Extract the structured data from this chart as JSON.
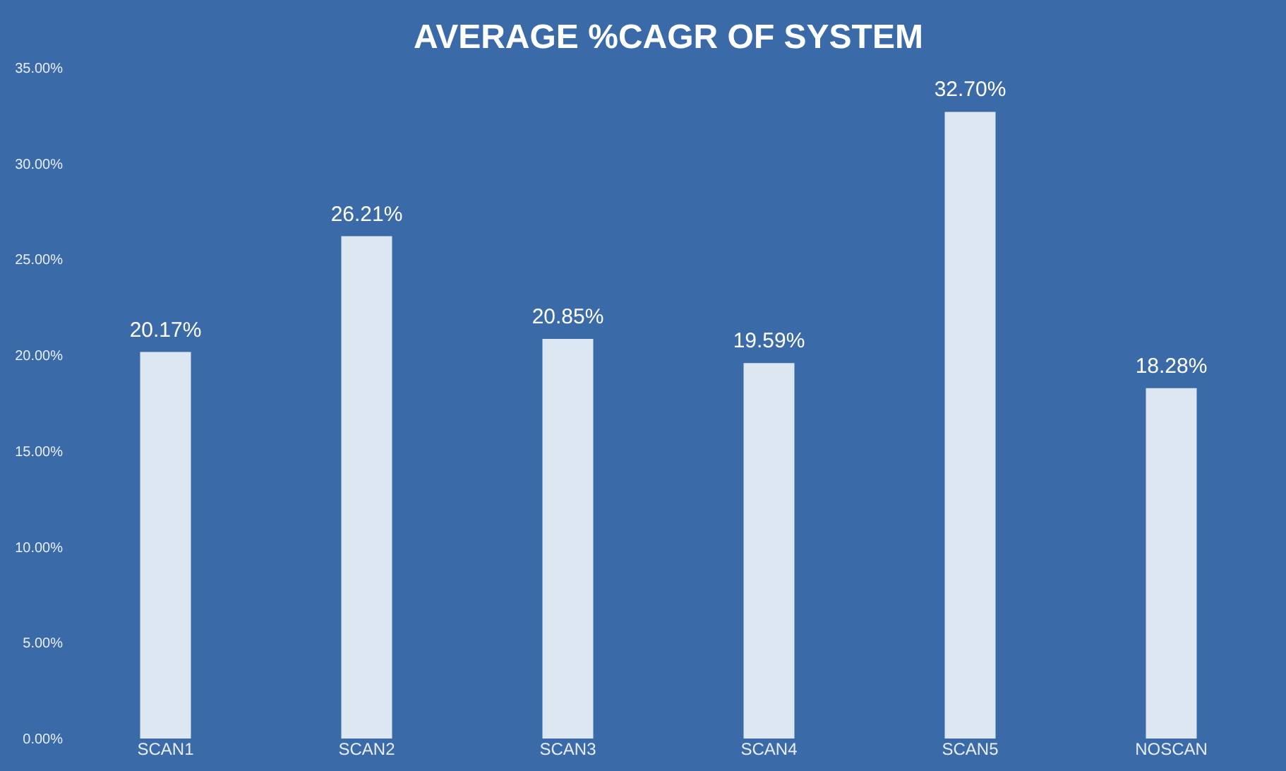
{
  "chart_data": {
    "type": "bar",
    "title": "AVERAGE  %CAGR OF SYSTEM",
    "categories": [
      "SCAN1",
      "SCAN2",
      "SCAN3",
      "SCAN4",
      "SCAN5",
      "NOSCAN"
    ],
    "values": [
      20.17,
      26.21,
      20.85,
      19.59,
      32.7,
      18.28
    ],
    "value_labels": [
      "20.17%",
      "26.21%",
      "20.85%",
      "19.59%",
      "32.70%",
      "18.28%"
    ],
    "color": "#dde7f2",
    "ylim": [
      0,
      35
    ],
    "yticks": [
      {
        "value": 0,
        "label": "0.00%"
      },
      {
        "value": 5,
        "label": "5.00%"
      },
      {
        "value": 10,
        "label": "10.00%"
      },
      {
        "value": 15,
        "label": "15.00%"
      },
      {
        "value": 20,
        "label": "20.00%"
      },
      {
        "value": 25,
        "label": "25.00%"
      },
      {
        "value": 30,
        "label": "30.00%"
      },
      {
        "value": 35,
        "label": "35.00%"
      }
    ],
    "grid": false
  }
}
